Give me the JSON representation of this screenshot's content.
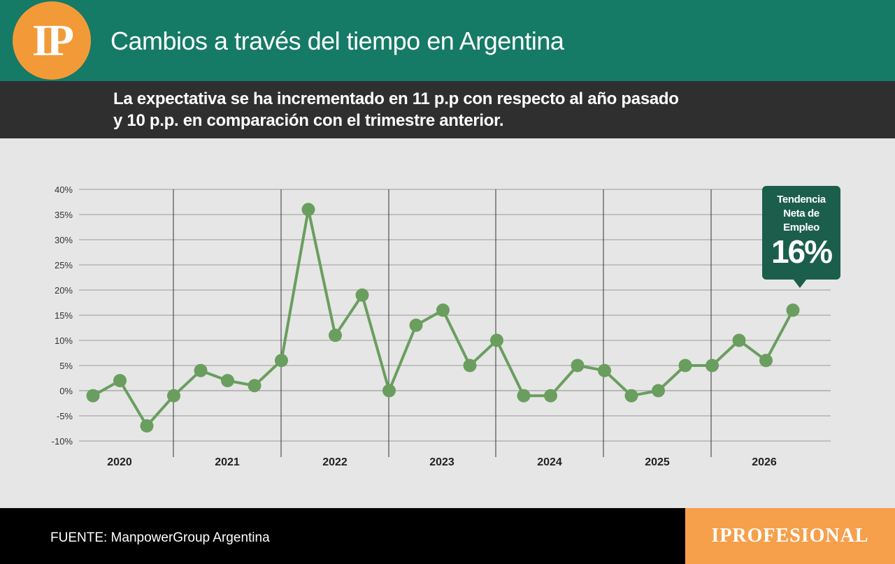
{
  "header": {
    "logo_text": "IP",
    "title": "Cambios a través del tiempo en Argentina"
  },
  "subheader": {
    "line1": "La expectativa se ha incrementado en 11 p.p con respecto al año pasado",
    "line2": "y 10 p.p. en  comparación con  el trimestre anterior."
  },
  "callout": {
    "label_lines": [
      "Tendencia",
      "Neta de",
      "Empleo"
    ],
    "value": "16%"
  },
  "footer": {
    "source": "FUENTE: ManpowerGroup Argentina",
    "brand": "IPROFESIONAL"
  },
  "colors": {
    "header_green": "#157a66",
    "subheader_dark": "#2f2f2f",
    "line_green": "#6a9e5f",
    "callout_green": "#1b5e4c",
    "brand_orange": "#f6a04c",
    "logo_orange": "#f39a38"
  },
  "chart_data": {
    "type": "line",
    "ylim": [
      -10,
      40
    ],
    "yticks": [
      -10,
      -5,
      0,
      5,
      10,
      15,
      20,
      25,
      30,
      35,
      40
    ],
    "ytick_labels": [
      "-10%",
      "-5%",
      "0%",
      "5%",
      "10%",
      "15%",
      "20%",
      "25%",
      "30%",
      "35%",
      "40%"
    ],
    "years": [
      "2020",
      "2021",
      "2022",
      "2023",
      "2024",
      "2025",
      "2026"
    ],
    "grid": true,
    "series": [
      {
        "values": [
          -1,
          2,
          -7,
          -1,
          4,
          2,
          1,
          6,
          36,
          11,
          19,
          0,
          13,
          16,
          5,
          10,
          -1,
          -1,
          5,
          4,
          -1,
          0,
          5,
          5,
          10,
          6,
          16
        ]
      }
    ]
  }
}
